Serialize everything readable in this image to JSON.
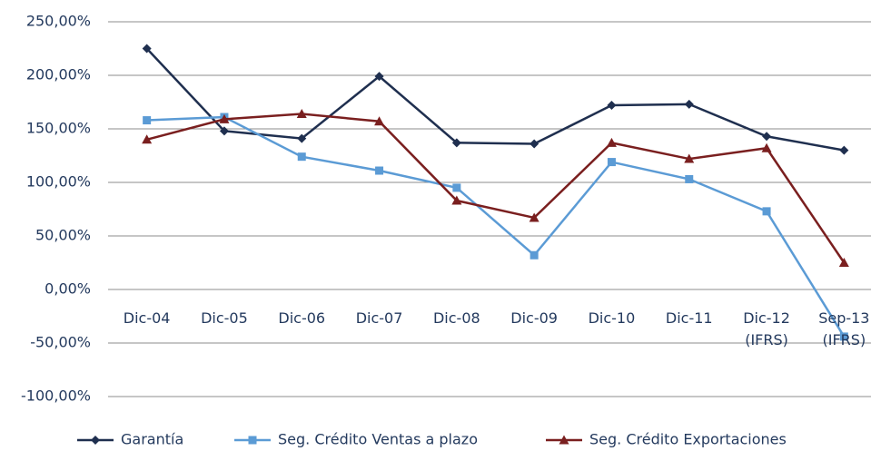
{
  "chart_data": {
    "type": "line",
    "categories": [
      "Dic-04",
      "Dic-05",
      "Dic-06",
      "Dic-07",
      "Dic-08",
      "Dic-09",
      "Dic-10",
      "Dic-11",
      "Dic-12 (IFRS)",
      "Sep-13 (IFRS)"
    ],
    "series": [
      {
        "name": "Garantía",
        "color": "#1f2f4f",
        "marker": "diamond",
        "values": [
          225,
          148,
          141,
          199,
          137,
          136,
          172,
          173,
          143,
          130
        ]
      },
      {
        "name": "Seg. Crédito Ventas a plazo",
        "color": "#5b9bd5",
        "marker": "square",
        "values": [
          158,
          161,
          124,
          111,
          95,
          32,
          119,
          103,
          73,
          -44
        ]
      },
      {
        "name": "Seg. Crédito Exportaciones",
        "color": "#7a1f1f",
        "marker": "triangle",
        "values": [
          140,
          159,
          164,
          157,
          83,
          67,
          137,
          122,
          132,
          25
        ]
      }
    ],
    "ylim": [
      -100,
      250
    ],
    "yticks": [
      {
        "value": -100,
        "label": "-100,00%"
      },
      {
        "value": -50,
        "label": "-50,00%"
      },
      {
        "value": 0,
        "label": "0,00%"
      },
      {
        "value": 50,
        "label": "50,00%"
      },
      {
        "value": 100,
        "label": "100,00%"
      },
      {
        "value": 150,
        "label": "150,00%"
      },
      {
        "value": 200,
        "label": "200,00%"
      },
      {
        "value": 250,
        "label": "250,00%"
      }
    ],
    "grid": true,
    "legend": "bottom"
  }
}
